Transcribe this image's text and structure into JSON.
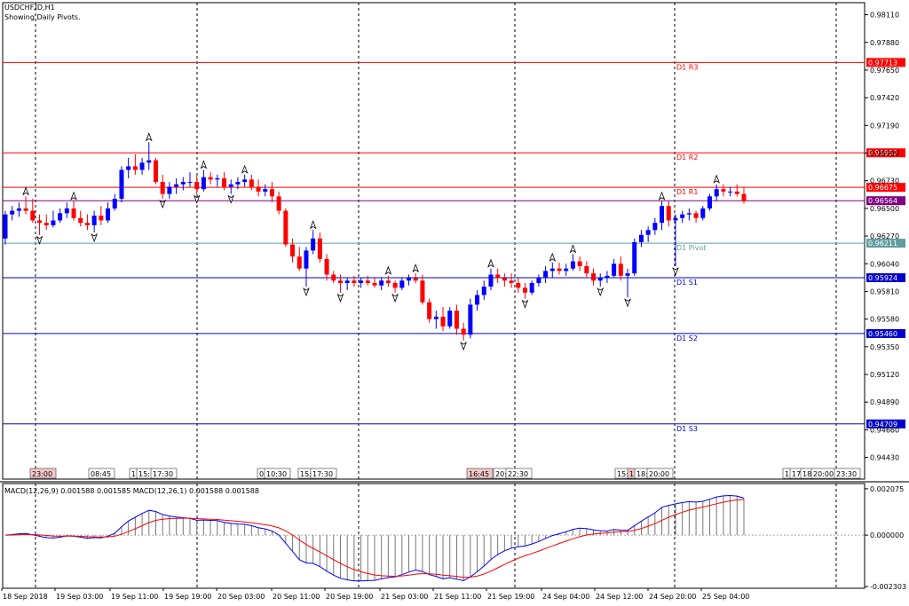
{
  "header": {
    "symbol": "USDCHF.ID,H1",
    "subtitle": "Showing Daily Pivots."
  },
  "chart_data": {
    "type": "candlestick",
    "ylim": [
      0.9425,
      0.9821
    ],
    "y_ticks": [
      0.9811,
      0.9788,
      0.9765,
      0.9742,
      0.9719,
      0.9696,
      0.9673,
      0.965,
      0.9627,
      0.9604,
      0.9581,
      0.9558,
      0.9535,
      0.9512,
      0.9489,
      0.9466,
      0.9443
    ],
    "last_price": 0.96564,
    "pivots": [
      {
        "name": "D1 R3",
        "value": 0.97713,
        "color": "#ff0000"
      },
      {
        "name": "D1 R2",
        "value": 0.96962,
        "color": "#ff0000"
      },
      {
        "name": "D1 R1",
        "value": 0.96675,
        "color": "#ff0000"
      },
      {
        "name": "D1 Pivot",
        "value": 0.96211,
        "color": "#5f9ea0"
      },
      {
        "name": "D1 S1",
        "value": 0.95924,
        "color": "#0000cd"
      },
      {
        "name": "D1 S2",
        "value": 0.9546,
        "color": "#0000cd"
      },
      {
        "name": "D1 S3",
        "value": 0.94709,
        "color": "#0000cd"
      }
    ],
    "x_labels": [
      "18 Sep 2018",
      "19 Sep 03:00",
      "19 Sep 11:00",
      "19 Sep 19:00",
      "20 Sep 03:00",
      "20 Sep 11:00",
      "20 Sep 19:00",
      "21 Sep 03:00",
      "21 Sep 11:00",
      "21 Sep 19:00",
      "24 Sep 04:00",
      "24 Sep 12:00",
      "24 Sep 20:00",
      "25 Sep 04:00"
    ],
    "time_tags": [
      {
        "label": "23:00",
        "highlight": true
      },
      {
        "label": "08:45",
        "highlight": false
      },
      {
        "label": "1",
        "highlight": false
      },
      {
        "label": "15:",
        "highlight": false
      },
      {
        "label": "17:30",
        "highlight": false
      },
      {
        "label": "0",
        "highlight": false
      },
      {
        "label": "10:30",
        "highlight": false
      },
      {
        "label": "15:",
        "highlight": false
      },
      {
        "label": "17:30",
        "highlight": false
      },
      {
        "label": "16:45",
        "highlight": true
      },
      {
        "label": "20:",
        "highlight": false
      },
      {
        "label": "22:30",
        "highlight": false
      },
      {
        "label": "15:",
        "highlight": false
      },
      {
        "label": "1",
        "highlight": true
      },
      {
        "label": "18:",
        "highlight": false
      },
      {
        "label": "20:00",
        "highlight": false
      },
      {
        "label": "1",
        "highlight": false
      },
      {
        "label": "17",
        "highlight": false
      },
      {
        "label": "18",
        "highlight": false
      },
      {
        "label": "20:00",
        "highlight": false
      },
      {
        "label": "23:30",
        "highlight": false
      }
    ],
    "candles": [
      [
        0.9625,
        0.9648,
        0.962,
        0.9645
      ],
      [
        0.9645,
        0.9652,
        0.964,
        0.9648
      ],
      [
        0.9648,
        0.9655,
        0.9643,
        0.965
      ],
      [
        0.965,
        0.966,
        0.9645,
        0.9648
      ],
      [
        0.9648,
        0.9658,
        0.9638,
        0.964
      ],
      [
        0.964,
        0.9645,
        0.9628,
        0.9638
      ],
      [
        0.9638,
        0.9645,
        0.9632,
        0.9636
      ],
      [
        0.9636,
        0.9648,
        0.9634,
        0.964
      ],
      [
        0.964,
        0.965,
        0.9638,
        0.9646
      ],
      [
        0.9646,
        0.9655,
        0.9642,
        0.965
      ],
      [
        0.965,
        0.9656,
        0.964,
        0.9642
      ],
      [
        0.9642,
        0.9648,
        0.9635,
        0.9638
      ],
      [
        0.9638,
        0.9645,
        0.9632,
        0.9636
      ],
      [
        0.9636,
        0.9648,
        0.963,
        0.9644
      ],
      [
        0.9644,
        0.9652,
        0.9636,
        0.964
      ],
      [
        0.964,
        0.9655,
        0.9638,
        0.965
      ],
      [
        0.965,
        0.9662,
        0.9648,
        0.9658
      ],
      [
        0.9658,
        0.9685,
        0.9655,
        0.9682
      ],
      [
        0.9682,
        0.9692,
        0.9675,
        0.9685
      ],
      [
        0.9685,
        0.9695,
        0.9678,
        0.9682
      ],
      [
        0.9682,
        0.9692,
        0.9678,
        0.9688
      ],
      [
        0.9688,
        0.9705,
        0.9682,
        0.969
      ],
      [
        0.969,
        0.9692,
        0.967,
        0.9672
      ],
      [
        0.9672,
        0.9678,
        0.9658,
        0.9662
      ],
      [
        0.9662,
        0.9672,
        0.9658,
        0.9668
      ],
      [
        0.9668,
        0.9675,
        0.9662,
        0.967
      ],
      [
        0.967,
        0.9676,
        0.9665,
        0.9672
      ],
      [
        0.9672,
        0.968,
        0.9668,
        0.9672
      ],
      [
        0.9672,
        0.9678,
        0.9662,
        0.9666
      ],
      [
        0.9666,
        0.9682,
        0.9664,
        0.9676
      ],
      [
        0.9676,
        0.968,
        0.967,
        0.9674
      ],
      [
        0.9674,
        0.9678,
        0.9668,
        0.9675
      ],
      [
        0.9675,
        0.968,
        0.9665,
        0.9668
      ],
      [
        0.9668,
        0.9674,
        0.9662,
        0.967
      ],
      [
        0.967,
        0.9676,
        0.9666,
        0.9672
      ],
      [
        0.9672,
        0.9678,
        0.9668,
        0.9674
      ],
      [
        0.9674,
        0.9678,
        0.9665,
        0.9668
      ],
      [
        0.9668,
        0.9674,
        0.966,
        0.9664
      ],
      [
        0.9664,
        0.967,
        0.966,
        0.9666
      ],
      [
        0.9666,
        0.9672,
        0.9655,
        0.966
      ],
      [
        0.966,
        0.9664,
        0.9645,
        0.9648
      ],
      [
        0.9648,
        0.965,
        0.9618,
        0.962
      ],
      [
        0.962,
        0.9625,
        0.9605,
        0.961
      ],
      [
        0.961,
        0.9618,
        0.9598,
        0.96
      ],
      [
        0.96,
        0.9618,
        0.9585,
        0.9615
      ],
      [
        0.9615,
        0.9632,
        0.9612,
        0.9625
      ],
      [
        0.9625,
        0.963,
        0.9605,
        0.9608
      ],
      [
        0.9608,
        0.9612,
        0.959,
        0.9595
      ],
      [
        0.9595,
        0.9598,
        0.9588,
        0.959
      ],
      [
        0.959,
        0.9595,
        0.958,
        0.9588
      ],
      [
        0.9588,
        0.9592,
        0.9582,
        0.959
      ],
      [
        0.959,
        0.9594,
        0.9585,
        0.9588
      ],
      [
        0.9588,
        0.9592,
        0.9584,
        0.959
      ],
      [
        0.959,
        0.9594,
        0.9586,
        0.9588
      ],
      [
        0.9588,
        0.9592,
        0.9584,
        0.9586
      ],
      [
        0.9586,
        0.9592,
        0.9582,
        0.959
      ],
      [
        0.959,
        0.9594,
        0.9585,
        0.9588
      ],
      [
        0.9588,
        0.959,
        0.958,
        0.9584
      ],
      [
        0.9584,
        0.9592,
        0.9582,
        0.959
      ],
      [
        0.959,
        0.9595,
        0.9586,
        0.9592
      ],
      [
        0.9592,
        0.9596,
        0.9588,
        0.959
      ],
      [
        0.959,
        0.9595,
        0.957,
        0.9572
      ],
      [
        0.9572,
        0.9575,
        0.9555,
        0.9558
      ],
      [
        0.9558,
        0.9565,
        0.955,
        0.956
      ],
      [
        0.956,
        0.9568,
        0.9548,
        0.9552
      ],
      [
        0.9552,
        0.9568,
        0.955,
        0.9565
      ],
      [
        0.9565,
        0.957,
        0.9545,
        0.955
      ],
      [
        0.955,
        0.9555,
        0.954,
        0.9545
      ],
      [
        0.9545,
        0.9575,
        0.9542,
        0.957
      ],
      [
        0.957,
        0.9582,
        0.9565,
        0.9578
      ],
      [
        0.9578,
        0.959,
        0.9574,
        0.9585
      ],
      [
        0.9585,
        0.96,
        0.9582,
        0.9595
      ],
      [
        0.9595,
        0.96,
        0.9588,
        0.9592
      ],
      [
        0.9592,
        0.9596,
        0.9585,
        0.959
      ],
      [
        0.959,
        0.9596,
        0.9584,
        0.9588
      ],
      [
        0.9588,
        0.9592,
        0.958,
        0.9584
      ],
      [
        0.9584,
        0.9588,
        0.9575,
        0.958
      ],
      [
        0.958,
        0.959,
        0.9578,
        0.9588
      ],
      [
        0.9588,
        0.9595,
        0.9585,
        0.9592
      ],
      [
        0.9592,
        0.9602,
        0.9588,
        0.9598
      ],
      [
        0.9598,
        0.9605,
        0.9592,
        0.96
      ],
      [
        0.96,
        0.9605,
        0.9595,
        0.9598
      ],
      [
        0.9598,
        0.9604,
        0.9594,
        0.96
      ],
      [
        0.96,
        0.9612,
        0.9598,
        0.9606
      ],
      [
        0.9606,
        0.961,
        0.9598,
        0.9602
      ],
      [
        0.9602,
        0.9606,
        0.9592,
        0.9596
      ],
      [
        0.9596,
        0.96,
        0.9586,
        0.959
      ],
      [
        0.959,
        0.9596,
        0.9585,
        0.9592
      ],
      [
        0.9592,
        0.9598,
        0.9588,
        0.9594
      ],
      [
        0.9594,
        0.9608,
        0.9592,
        0.9604
      ],
      [
        0.9604,
        0.961,
        0.959,
        0.9594
      ],
      [
        0.9594,
        0.96,
        0.9576,
        0.9596
      ],
      [
        0.9596,
        0.9625,
        0.9594,
        0.9622
      ],
      [
        0.9622,
        0.9632,
        0.9618,
        0.9628
      ],
      [
        0.9628,
        0.9635,
        0.9622,
        0.9632
      ],
      [
        0.9632,
        0.9642,
        0.9628,
        0.9638
      ],
      [
        0.9638,
        0.9656,
        0.9632,
        0.9652
      ],
      [
        0.9652,
        0.9656,
        0.9635,
        0.964
      ],
      [
        0.964,
        0.9645,
        0.9602,
        0.9642
      ],
      [
        0.9642,
        0.9648,
        0.9638,
        0.9645
      ],
      [
        0.9645,
        0.965,
        0.964,
        0.9646
      ],
      [
        0.9646,
        0.9648,
        0.9638,
        0.9642
      ],
      [
        0.9642,
        0.9652,
        0.964,
        0.965
      ],
      [
        0.965,
        0.9662,
        0.9648,
        0.966
      ],
      [
        0.966,
        0.967,
        0.9656,
        0.9666
      ],
      [
        0.9666,
        0.967,
        0.966,
        0.9664
      ],
      [
        0.9664,
        0.9668,
        0.966,
        0.9664
      ],
      [
        0.9664,
        0.967,
        0.966,
        0.9662
      ],
      [
        0.9662,
        0.9668,
        0.9654,
        0.9656
      ]
    ],
    "macd": {
      "label": "MACD(12,26,9) 0.001588 0.001585 MACD(12,26,1) 0.001588 0.001588",
      "ylim": [
        -0.00238,
        0.00231
      ],
      "y_ticks": [
        0.002075,
        0.0,
        -0.002303
      ],
      "y_tick_labels": [
        "0.002075",
        "0.000000",
        "-0.002303"
      ],
      "main_color": "#0000ff",
      "signal_color": "#ff0000"
    }
  }
}
